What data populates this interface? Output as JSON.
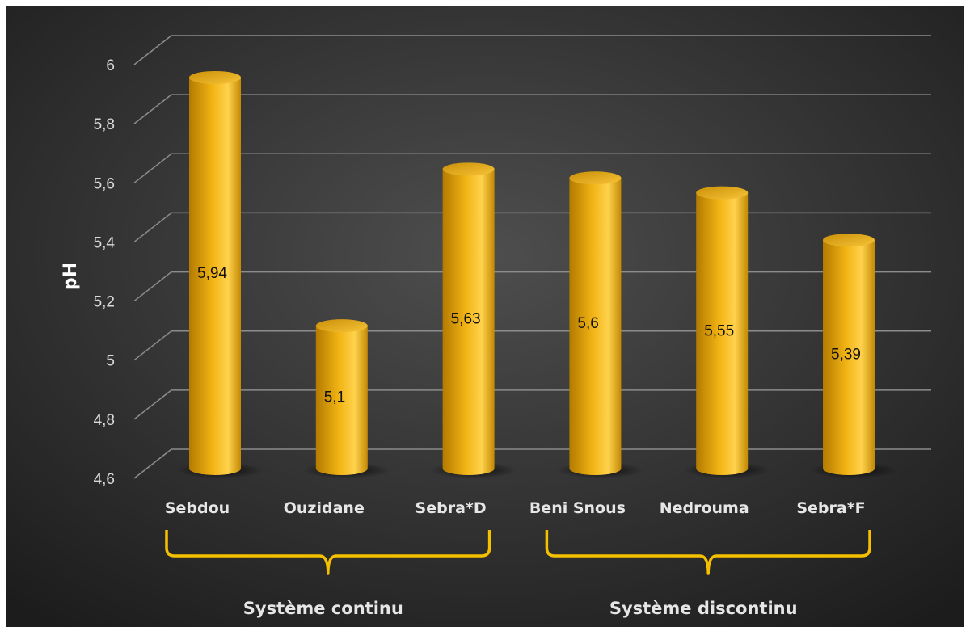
{
  "chart_data": {
    "type": "bar",
    "style": "3d-cylinder",
    "categories": [
      "Sebdou",
      "Ouzidane",
      "Sebra*D",
      "Beni Snous",
      "Nedrouma",
      "Sebra*F"
    ],
    "values": [
      5.94,
      5.1,
      5.63,
      5.6,
      5.55,
      5.39
    ],
    "data_labels": [
      "5,94",
      "5,1",
      "5,63",
      "5,6",
      "5,55",
      "5,39"
    ],
    "ylabel": "pH",
    "xlabel": "",
    "ylim": [
      4.6,
      6.0
    ],
    "yticks": [
      4.6,
      4.8,
      5.0,
      5.2,
      5.4,
      5.6,
      5.8,
      6.0
    ],
    "ytick_labels": [
      "4,6",
      "4,8",
      "5",
      "5,2",
      "5,4",
      "5,6",
      "5,8",
      "6"
    ],
    "grid": true,
    "groups": [
      {
        "label": "Système continu",
        "members": [
          "Sebdou",
          "Ouzidane",
          "Sebra*D"
        ]
      },
      {
        "label": "Système discontinu",
        "members": [
          "Beni Snous",
          "Nedrouma",
          "Sebra*F"
        ]
      }
    ],
    "colors": {
      "background_center": "#4e4e4e",
      "background_edge": "#1c1c1c",
      "bar": "#f2b414",
      "bar_dark": "#b37a00",
      "bar_light": "#ffd24d",
      "bracket": "#f5c000",
      "grid": "#8c8c8c"
    }
  }
}
